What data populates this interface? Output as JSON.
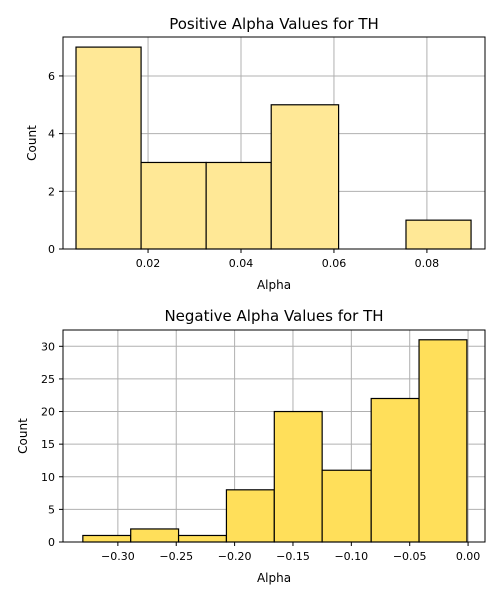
{
  "chart_data": [
    {
      "type": "bar",
      "title": "Positive Alpha Values for TH",
      "xlabel": "Alpha",
      "ylabel": "Count",
      "xlim": [
        0.0017,
        0.0925
      ],
      "ylim": [
        0,
        7.35
      ],
      "xticks": [
        0.02,
        0.04,
        0.06,
        0.08
      ],
      "xtick_labels": [
        "0.02",
        "0.04",
        "0.06",
        "0.08"
      ],
      "yticks": [
        0,
        2,
        4,
        6
      ],
      "ytick_labels": [
        "0",
        "2",
        "4",
        "6"
      ],
      "grid": true,
      "bar_color": "#ffe896",
      "bins": [
        {
          "start": 0.0045,
          "end": 0.0185,
          "count": 7
        },
        {
          "start": 0.0185,
          "end": 0.0325,
          "count": 3
        },
        {
          "start": 0.0325,
          "end": 0.0465,
          "count": 3
        },
        {
          "start": 0.0465,
          "end": 0.061,
          "count": 5
        },
        {
          "start": 0.061,
          "end": 0.0755,
          "count": 0
        },
        {
          "start": 0.0755,
          "end": 0.0895,
          "count": 1
        }
      ]
    },
    {
      "type": "bar",
      "title": "Negative Alpha Values for TH",
      "xlabel": "Alpha",
      "ylabel": "Count",
      "xlim": [
        -0.347,
        0.0145
      ],
      "ylim": [
        0,
        32.5
      ],
      "xticks": [
        -0.3,
        -0.25,
        -0.2,
        -0.15,
        -0.1,
        -0.05,
        0.0
      ],
      "xtick_labels": [
        "−0.30",
        "−0.25",
        "−0.20",
        "−0.15",
        "−0.10",
        "−0.05",
        "0.00"
      ],
      "yticks": [
        0,
        5,
        10,
        15,
        20,
        25,
        30
      ],
      "ytick_labels": [
        "0",
        "5",
        "10",
        "15",
        "20",
        "25",
        "30"
      ],
      "grid": true,
      "bar_color": "#ffdf5a",
      "bins": [
        {
          "start": -0.33,
          "end": -0.289,
          "count": 1
        },
        {
          "start": -0.289,
          "end": -0.248,
          "count": 2
        },
        {
          "start": -0.248,
          "end": -0.207,
          "count": 1
        },
        {
          "start": -0.207,
          "end": -0.166,
          "count": 8
        },
        {
          "start": -0.166,
          "end": -0.125,
          "count": 20
        },
        {
          "start": -0.125,
          "end": -0.083,
          "count": 11
        },
        {
          "start": -0.083,
          "end": -0.042,
          "count": 22
        },
        {
          "start": -0.042,
          "end": -0.001,
          "count": 31
        }
      ]
    }
  ]
}
